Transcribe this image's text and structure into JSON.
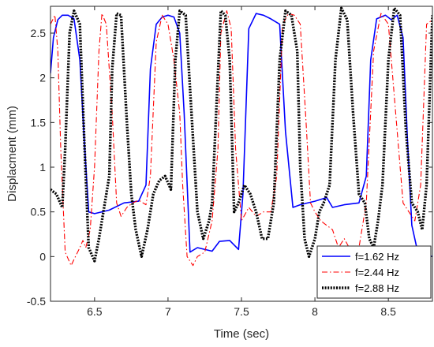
{
  "chart_data": {
    "type": "line",
    "title": "",
    "xlabel": "Time (sec)",
    "ylabel": "Displacment (mm)",
    "xlim": [
      6.2,
      8.8
    ],
    "ylim": [
      -0.5,
      2.8
    ],
    "xticks": [
      "6.5",
      "7",
      "7.5",
      "8",
      "8.5"
    ],
    "xtick_values": [
      6.5,
      7,
      7.5,
      8,
      8.5
    ],
    "yticks": [
      "-0.5",
      "0",
      "0.5",
      "1",
      "1.5",
      "2",
      "2.5"
    ],
    "ytick_values": [
      -0.5,
      0,
      0.5,
      1,
      1.5,
      2,
      2.5
    ],
    "grid": false,
    "legend_position": "bottom-right",
    "series": [
      {
        "name": "f=1.62 Hz",
        "color": "#0000ff",
        "style": "solid",
        "x": [
          6.2,
          6.22,
          6.25,
          6.28,
          6.32,
          6.36,
          6.4,
          6.43,
          6.46,
          6.5,
          6.6,
          6.7,
          6.8,
          6.85,
          6.88,
          6.92,
          6.96,
          7.0,
          7.04,
          7.08,
          7.11,
          7.15,
          7.2,
          7.3,
          7.35,
          7.42,
          7.48,
          7.51,
          7.55,
          7.6,
          7.65,
          7.7,
          7.76,
          7.8,
          7.85,
          7.9,
          8.0,
          8.08,
          8.12,
          8.2,
          8.3,
          8.35,
          8.38,
          8.42,
          8.48,
          8.52,
          8.56,
          8.6,
          8.63,
          8.66,
          8.7,
          8.8
        ],
        "y": [
          2.05,
          2.45,
          2.65,
          2.7,
          2.7,
          2.66,
          2.2,
          1.3,
          0.5,
          0.48,
          0.52,
          0.6,
          0.62,
          0.8,
          2.1,
          2.6,
          2.68,
          2.7,
          2.68,
          2.5,
          1.6,
          0.05,
          0.1,
          0.06,
          0.17,
          0.18,
          0.08,
          0.7,
          2.55,
          2.72,
          2.7,
          2.66,
          2.6,
          1.4,
          0.55,
          0.58,
          0.62,
          0.66,
          0.55,
          0.58,
          0.6,
          0.9,
          2.2,
          2.66,
          2.7,
          2.65,
          2.7,
          2.45,
          1.3,
          0.35,
          0.05,
          0.0
        ]
      },
      {
        "name": "f=2.44 Hz",
        "color": "#ff0000",
        "style": "dashdot",
        "x": [
          6.2,
          6.23,
          6.25,
          6.27,
          6.3,
          6.34,
          6.37,
          6.4,
          6.42,
          6.44,
          6.47,
          6.5,
          6.53,
          6.55,
          6.58,
          6.62,
          6.65,
          6.68,
          6.72,
          6.76,
          6.8,
          6.85,
          6.88,
          6.92,
          6.96,
          7.0,
          7.04,
          7.08,
          7.1,
          7.13,
          7.17,
          7.2,
          7.25,
          7.3,
          7.34,
          7.36,
          7.4,
          7.43,
          7.46,
          7.5,
          7.55,
          7.6,
          7.65,
          7.7,
          7.74,
          7.78,
          7.82,
          7.86,
          7.9,
          7.94,
          7.97,
          8.0,
          8.04,
          8.08,
          8.12,
          8.16,
          8.2,
          8.25,
          8.3,
          8.35,
          8.4,
          8.45,
          8.5,
          8.55,
          8.6,
          8.64,
          8.68,
          8.72,
          8.76,
          8.8
        ],
        "y": [
          2.6,
          2.7,
          2.3,
          1.2,
          0.05,
          -0.1,
          0.0,
          0.1,
          0.18,
          0.1,
          0.3,
          1.0,
          2.3,
          2.72,
          2.6,
          1.6,
          0.6,
          0.45,
          0.55,
          0.6,
          0.63,
          0.58,
          0.9,
          2.4,
          2.7,
          2.6,
          2.2,
          1.6,
          0.8,
          0.0,
          -0.1,
          0.0,
          0.05,
          0.4,
          1.2,
          2.5,
          2.75,
          2.55,
          1.2,
          0.4,
          0.55,
          0.45,
          0.5,
          0.5,
          0.9,
          2.6,
          2.72,
          2.7,
          2.6,
          1.5,
          0.6,
          0.5,
          0.4,
          0.35,
          0.3,
          0.1,
          0.2,
          0.05,
          0.1,
          0.6,
          2.3,
          2.72,
          2.6,
          1.6,
          0.6,
          0.5,
          0.4,
          0.8,
          2.6,
          2.65
        ]
      },
      {
        "name": "f=2.88 Hz",
        "color": "#000000",
        "style": "dotted",
        "x": [
          6.2,
          6.24,
          6.28,
          6.3,
          6.33,
          6.36,
          6.4,
          6.43,
          6.46,
          6.5,
          6.53,
          6.57,
          6.6,
          6.62,
          6.65,
          6.68,
          6.72,
          6.75,
          6.78,
          6.82,
          6.86,
          6.9,
          6.94,
          6.98,
          7.02,
          7.05,
          7.08,
          7.12,
          7.16,
          7.2,
          7.24,
          7.28,
          7.3,
          7.33,
          7.36,
          7.39,
          7.42,
          7.45,
          7.48,
          7.52,
          7.56,
          7.6,
          7.64,
          7.68,
          7.72,
          7.76,
          7.8,
          7.84,
          7.88,
          7.9,
          7.93,
          7.96,
          8.0,
          8.03,
          8.06,
          8.1,
          8.14,
          8.18,
          8.22,
          8.26,
          8.3,
          8.34,
          8.37,
          8.4,
          8.43,
          8.46,
          8.5,
          8.54,
          8.58,
          8.62,
          8.66,
          8.7,
          8.73,
          8.76,
          8.8
        ],
        "y": [
          0.75,
          0.7,
          0.55,
          1.2,
          2.5,
          2.75,
          2.6,
          1.3,
          0.1,
          -0.05,
          0.2,
          0.6,
          0.9,
          2.1,
          2.72,
          2.7,
          1.5,
          0.7,
          0.3,
          0.0,
          0.3,
          0.7,
          0.85,
          0.9,
          0.75,
          2.2,
          2.75,
          2.7,
          1.6,
          0.5,
          0.2,
          0.4,
          0.6,
          1.7,
          2.75,
          2.7,
          2.2,
          0.5,
          0.6,
          0.8,
          0.7,
          0.5,
          0.2,
          0.2,
          0.6,
          2.2,
          2.75,
          2.7,
          2.3,
          1.0,
          0.2,
          0.0,
          0.2,
          0.5,
          0.6,
          0.8,
          2.2,
          2.78,
          2.65,
          1.6,
          0.7,
          0.6,
          0.2,
          0.1,
          0.4,
          0.8,
          2.2,
          2.78,
          2.7,
          1.4,
          0.6,
          0.5,
          0.3,
          0.8,
          2.7
        ]
      }
    ]
  }
}
